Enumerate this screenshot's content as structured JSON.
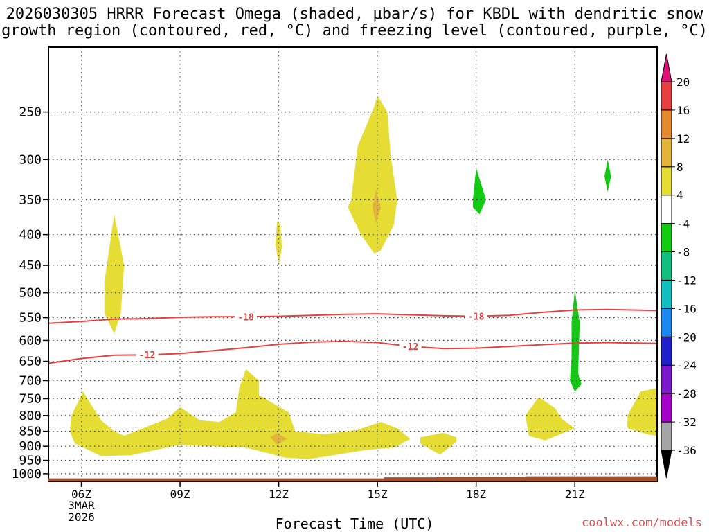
{
  "title_line1": "2026030305 HRRR Forecast Omega (shaded, μbar/s) for KBDL with dendritic snow",
  "title_line2": "growth region (contoured, red, °C) and freezing level (contoured, purple, °C)",
  "x_axis_label": "Forecast Time (UTC)",
  "credit": "coolwx.com/models",
  "colors": {
    "gray": "#a5a5a5",
    "purple": "#a800cc",
    "violet": "#7a1acc",
    "blue": "#1f1fcc",
    "azure": "#1a88ee",
    "cyan": "#10c0c0",
    "teal": "#10c080",
    "green": "#10cc10",
    "white": "#ffffff",
    "yellow": "#e5dc34",
    "gold": "#e3b43a",
    "orange": "#e38a30",
    "red": "#e84040",
    "magenta": "#e0107a",
    "contour": "#e84040",
    "ground": "#a0522d"
  },
  "chart_data": {
    "type": "contour_heatmap",
    "x_unit": "forecast hour (UTC)",
    "x_range": [
      5.0,
      23.5
    ],
    "y_unit": "pressure (hPa)",
    "y_range": [
      1030,
      195
    ],
    "y_ticks": [
      250,
      300,
      350,
      400,
      450,
      500,
      550,
      600,
      650,
      700,
      750,
      800,
      850,
      900,
      950,
      1000
    ],
    "x_ticks": [
      {
        "t": 6,
        "label": "06Z",
        "sub1": "3MAR",
        "sub2": "2026"
      },
      {
        "t": 9,
        "label": "09Z"
      },
      {
        "t": 12,
        "label": "12Z"
      },
      {
        "t": 15,
        "label": "15Z"
      },
      {
        "t": 18,
        "label": "18Z"
      },
      {
        "t": 21,
        "label": "21Z"
      }
    ],
    "colorbar": {
      "levels": [
        -36,
        -32,
        -28,
        -24,
        -20,
        -16,
        -12,
        -8,
        -4,
        4,
        8,
        12,
        16,
        20
      ],
      "labels": [
        "20",
        "16",
        "12",
        "8",
        "4",
        "-4",
        "-8",
        "-12",
        "-16",
        "-20",
        "-24",
        "-28",
        "-32",
        "-36"
      ],
      "colors": [
        "gray",
        "purple",
        "violet",
        "blue",
        "azure",
        "cyan",
        "teal",
        "green",
        "white",
        "yellow",
        "gold",
        "orange",
        "red"
      ],
      "top_arrow": "magenta",
      "bottom_arrow": "black"
    },
    "contours": [
      {
        "level": -18,
        "label": "-18",
        "points": [
          [
            5.0,
            562
          ],
          [
            6.0,
            558
          ],
          [
            7.0,
            553
          ],
          [
            8.0,
            552
          ],
          [
            9.0,
            549
          ],
          [
            10.0,
            548
          ],
          [
            11.0,
            548
          ],
          [
            12.0,
            547
          ],
          [
            13.0,
            545
          ],
          [
            14.0,
            543
          ],
          [
            15.0,
            542
          ],
          [
            16.0,
            544
          ],
          [
            17.0,
            546
          ],
          [
            18.0,
            547
          ],
          [
            19.0,
            545
          ],
          [
            20.0,
            539
          ],
          [
            21.0,
            534
          ],
          [
            22.0,
            533
          ],
          [
            23.5,
            535
          ]
        ],
        "label_at": [
          [
            11.0,
            548
          ],
          [
            18.0,
            547
          ]
        ]
      },
      {
        "level": -12,
        "label": "-12",
        "points": [
          [
            5.0,
            655
          ],
          [
            6.0,
            643
          ],
          [
            7.0,
            635
          ],
          [
            8.0,
            634
          ],
          [
            9.0,
            631
          ],
          [
            10.0,
            624
          ],
          [
            11.0,
            617
          ],
          [
            12.0,
            609
          ],
          [
            13.0,
            604
          ],
          [
            14.0,
            602
          ],
          [
            15.0,
            605
          ],
          [
            16.0,
            614
          ],
          [
            17.0,
            619
          ],
          [
            18.0,
            618
          ],
          [
            19.0,
            614
          ],
          [
            20.0,
            610
          ],
          [
            21.0,
            606
          ],
          [
            22.0,
            605
          ],
          [
            23.5,
            607
          ]
        ],
        "label_at": [
          [
            8.0,
            634
          ],
          [
            16.0,
            614
          ]
        ]
      }
    ],
    "regions": [
      {
        "color": "yellow",
        "points": [
          [
            5.7,
            800
          ],
          [
            6.05,
            730
          ],
          [
            6.6,
            815
          ],
          [
            7.0,
            850
          ],
          [
            7.3,
            865
          ],
          [
            8.0,
            835
          ],
          [
            8.6,
            810
          ],
          [
            9.0,
            775
          ],
          [
            9.6,
            815
          ],
          [
            10.2,
            820
          ],
          [
            10.7,
            790
          ],
          [
            10.8,
            720
          ],
          [
            11.0,
            670
          ],
          [
            11.4,
            700
          ],
          [
            11.4,
            740
          ],
          [
            12.3,
            790
          ],
          [
            12.5,
            850
          ],
          [
            13.4,
            860
          ],
          [
            14.4,
            845
          ],
          [
            15.1,
            820
          ],
          [
            15.6,
            840
          ],
          [
            16.0,
            875
          ],
          [
            15.5,
            905
          ],
          [
            14.7,
            912
          ],
          [
            13.5,
            935
          ],
          [
            12.9,
            945
          ],
          [
            12.2,
            940
          ],
          [
            11.0,
            905
          ],
          [
            9.9,
            900
          ],
          [
            9.0,
            895
          ],
          [
            7.5,
            932
          ],
          [
            6.6,
            935
          ],
          [
            5.8,
            890
          ],
          [
            5.65,
            850
          ]
        ]
      },
      {
        "color": "yellow",
        "points": [
          [
            16.3,
            870
          ],
          [
            17.0,
            855
          ],
          [
            17.4,
            870
          ],
          [
            17.4,
            885
          ],
          [
            16.9,
            930
          ],
          [
            16.3,
            890
          ]
        ]
      },
      {
        "color": "yellow",
        "points": [
          [
            6.7,
            480
          ],
          [
            7.0,
            370
          ],
          [
            7.3,
            450
          ],
          [
            7.2,
            540
          ],
          [
            7.0,
            585
          ],
          [
            6.7,
            540
          ]
        ]
      },
      {
        "color": "yellow",
        "points": [
          [
            11.9,
            415
          ],
          [
            11.95,
            380
          ],
          [
            12.05,
            385
          ],
          [
            12.1,
            420
          ],
          [
            12.0,
            450
          ]
        ]
      },
      {
        "color": "yellow",
        "points": [
          [
            14.2,
            350
          ],
          [
            14.4,
            285
          ],
          [
            14.9,
            245
          ],
          [
            15.0,
            235
          ],
          [
            15.3,
            250
          ],
          [
            15.4,
            295
          ],
          [
            15.6,
            350
          ],
          [
            15.5,
            385
          ],
          [
            15.1,
            425
          ],
          [
            14.9,
            430
          ],
          [
            14.5,
            400
          ],
          [
            14.1,
            360
          ]
        ]
      },
      {
        "color": "gold",
        "points": [
          [
            14.85,
            360
          ],
          [
            14.95,
            337
          ],
          [
            15.1,
            360
          ],
          [
            14.95,
            383
          ]
        ]
      },
      {
        "color": "gold",
        "points": [
          [
            11.75,
            870
          ],
          [
            11.95,
            855
          ],
          [
            12.25,
            875
          ],
          [
            11.95,
            895
          ]
        ]
      },
      {
        "color": "yellow",
        "points": [
          [
            19.5,
            800
          ],
          [
            19.9,
            745
          ],
          [
            20.4,
            778
          ],
          [
            20.6,
            810
          ],
          [
            21.0,
            840
          ],
          [
            20.1,
            880
          ],
          [
            19.6,
            865
          ]
        ]
      },
      {
        "color": "yellow",
        "points": [
          [
            22.6,
            800
          ],
          [
            23.0,
            730
          ],
          [
            23.5,
            720
          ],
          [
            23.5,
            865
          ],
          [
            23.2,
            860
          ],
          [
            22.6,
            840
          ]
        ]
      },
      {
        "color": "green",
        "points": [
          [
            17.9,
            350
          ],
          [
            18.0,
            310
          ],
          [
            18.3,
            350
          ],
          [
            18.1,
            370
          ],
          [
            17.9,
            360
          ]
        ]
      },
      {
        "color": "green",
        "points": [
          [
            21.9,
            320
          ],
          [
            22.0,
            300
          ],
          [
            22.1,
            320
          ],
          [
            22.0,
            340
          ]
        ]
      },
      {
        "color": "green",
        "points": [
          [
            20.9,
            560
          ],
          [
            21.0,
            495
          ],
          [
            21.15,
            560
          ],
          [
            21.1,
            680
          ],
          [
            21.2,
            710
          ],
          [
            21.0,
            730
          ],
          [
            20.85,
            700
          ],
          [
            20.9,
            640
          ]
        ]
      }
    ],
    "ground": [
      [
        5.0,
        1018
      ],
      [
        15.2,
        1018
      ],
      [
        15.2,
        1014
      ],
      [
        16.8,
        1014
      ],
      [
        16.8,
        1012
      ],
      [
        19.5,
        1012
      ],
      [
        19.5,
        1010
      ],
      [
        23.5,
        1010
      ]
    ]
  }
}
